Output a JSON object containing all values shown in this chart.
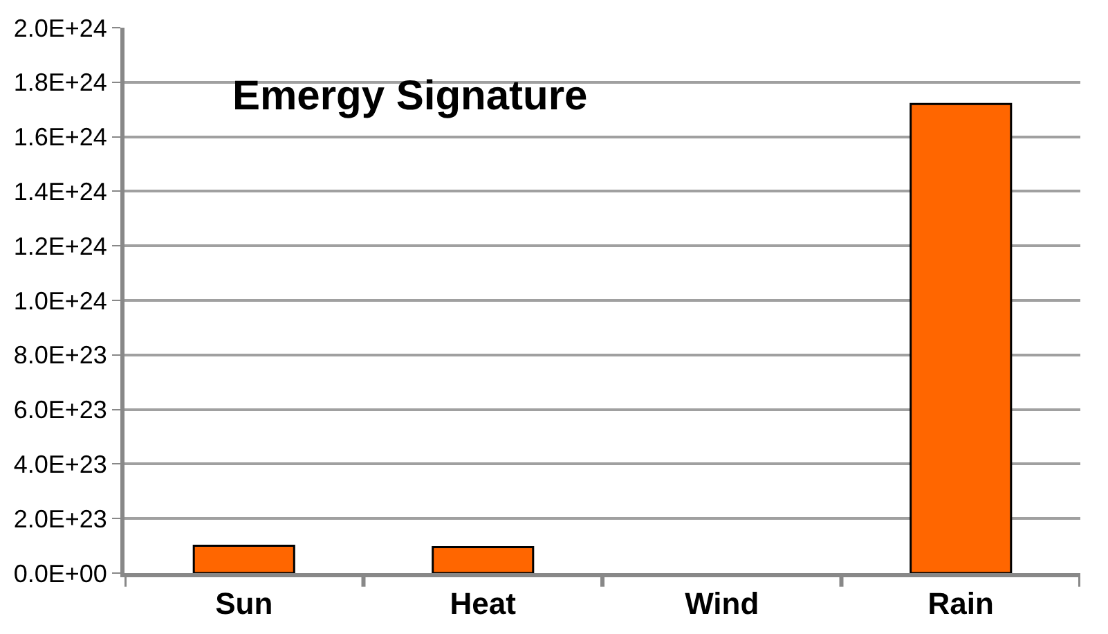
{
  "chart_data": {
    "type": "bar",
    "title": "Emergy Signature",
    "categories": [
      "Sun",
      "Heat",
      "Wind",
      "Rain"
    ],
    "values": [
      1e+23,
      9.5e+22,
      0,
      1.72e+24
    ],
    "color": "#ff6600",
    "ylim": [
      0,
      2e+24
    ],
    "yticks": [
      {
        "value": 0,
        "label": "0.0E+00"
      },
      {
        "value": 2e+23,
        "label": "2.0E+23"
      },
      {
        "value": 4e+23,
        "label": "4.0E+23"
      },
      {
        "value": 6e+23,
        "label": "6.0E+23"
      },
      {
        "value": 8e+23,
        "label": "8.0E+23"
      },
      {
        "value": 1e+24,
        "label": "1.0E+24"
      },
      {
        "value": 1.2e+24,
        "label": "1.2E+24"
      },
      {
        "value": 1.4e+24,
        "label": "1.4E+24"
      },
      {
        "value": 1.6e+24,
        "label": "1.6E+24"
      },
      {
        "value": 1.8e+24,
        "label": "1.8E+24"
      },
      {
        "value": 2e+24,
        "label": "2.0E+24"
      }
    ],
    "grid": "y"
  }
}
